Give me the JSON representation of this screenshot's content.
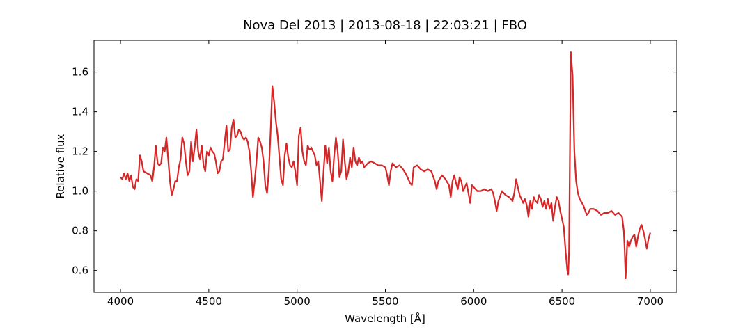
{
  "chart_data": {
    "type": "line",
    "title": "Nova Del 2013 | 2013-08-18 | 22:03:21 | FBO",
    "x_label": "Wavelength [Å]",
    "y_label": "Relative flux",
    "color": "#d62728",
    "xlim": [
      3850,
      7150
    ],
    "ylim": [
      0.49,
      1.76
    ],
    "xticks": [
      4000,
      4500,
      5000,
      5500,
      6000,
      6500,
      7000
    ],
    "yticks": [
      0.6,
      0.8,
      {
        "value": 1,
        "label": "1.0"
      },
      1.2,
      1.4,
      1.6
    ],
    "x": [
      4000,
      4010,
      4020,
      4030,
      4040,
      4050,
      4060,
      4070,
      4080,
      4090,
      4100,
      4110,
      4120,
      4130,
      4150,
      4170,
      4180,
      4190,
      4200,
      4210,
      4220,
      4230,
      4240,
      4250,
      4260,
      4270,
      4280,
      4290,
      4300,
      4310,
      4320,
      4330,
      4340,
      4350,
      4360,
      4370,
      4380,
      4390,
      4400,
      4410,
      4420,
      4430,
      4440,
      4450,
      4460,
      4470,
      4480,
      4490,
      4500,
      4510,
      4520,
      4530,
      4540,
      4550,
      4560,
      4570,
      4580,
      4590,
      4600,
      4610,
      4620,
      4630,
      4640,
      4650,
      4660,
      4670,
      4680,
      4690,
      4700,
      4710,
      4720,
      4730,
      4740,
      4750,
      4760,
      4770,
      4780,
      4790,
      4800,
      4810,
      4820,
      4830,
      4840,
      4850,
      4860,
      4870,
      4880,
      4890,
      4900,
      4910,
      4920,
      4930,
      4940,
      4950,
      4960,
      4970,
      4980,
      4990,
      5000,
      5010,
      5020,
      5030,
      5040,
      5050,
      5060,
      5070,
      5080,
      5090,
      5100,
      5110,
      5120,
      5130,
      5140,
      5150,
      5160,
      5170,
      5180,
      5190,
      5200,
      5210,
      5220,
      5230,
      5240,
      5250,
      5260,
      5270,
      5280,
      5290,
      5300,
      5310,
      5320,
      5330,
      5340,
      5350,
      5360,
      5370,
      5380,
      5400,
      5420,
      5440,
      5460,
      5480,
      5500,
      5510,
      5520,
      5530,
      5540,
      5560,
      5580,
      5600,
      5620,
      5640,
      5650,
      5660,
      5680,
      5700,
      5720,
      5740,
      5760,
      5780,
      5790,
      5800,
      5820,
      5840,
      5860,
      5870,
      5880,
      5890,
      5900,
      5910,
      5920,
      5930,
      5940,
      5960,
      5970,
      5980,
      5990,
      6000,
      6020,
      6040,
      6060,
      6080,
      6100,
      6110,
      6120,
      6130,
      6140,
      6160,
      6180,
      6200,
      6220,
      6230,
      6240,
      6250,
      6260,
      6280,
      6290,
      6300,
      6310,
      6320,
      6330,
      6340,
      6350,
      6360,
      6370,
      6380,
      6390,
      6400,
      6410,
      6420,
      6430,
      6440,
      6450,
      6460,
      6470,
      6480,
      6490,
      6500,
      6510,
      6520,
      6530,
      6535,
      6540,
      6550,
      6560,
      6570,
      6580,
      6590,
      6600,
      6620,
      6640,
      6650,
      6660,
      6680,
      6700,
      6720,
      6740,
      6760,
      6780,
      6800,
      6820,
      6840,
      6850,
      6855,
      6860,
      6870,
      6880,
      6890,
      6900,
      6910,
      6920,
      6930,
      6940,
      6950,
      6960,
      6970,
      6980,
      6990,
      7000
    ],
    "values": [
      1.07,
      1.06,
      1.09,
      1.06,
      1.09,
      1.05,
      1.08,
      1.02,
      1.01,
      1.06,
      1.05,
      1.18,
      1.15,
      1.1,
      1.09,
      1.08,
      1.05,
      1.12,
      1.23,
      1.14,
      1.13,
      1.14,
      1.22,
      1.2,
      1.27,
      1.16,
      1.05,
      0.98,
      1.01,
      1.05,
      1.05,
      1.12,
      1.16,
      1.27,
      1.24,
      1.15,
      1.08,
      1.1,
      1.25,
      1.15,
      1.22,
      1.31,
      1.2,
      1.16,
      1.23,
      1.13,
      1.1,
      1.2,
      1.18,
      1.22,
      1.2,
      1.19,
      1.15,
      1.09,
      1.1,
      1.15,
      1.16,
      1.25,
      1.33,
      1.2,
      1.21,
      1.32,
      1.36,
      1.27,
      1.28,
      1.31,
      1.3,
      1.27,
      1.26,
      1.27,
      1.25,
      1.2,
      1.1,
      0.97,
      1.05,
      1.15,
      1.27,
      1.25,
      1.22,
      1.15,
      1.03,
      0.99,
      1.1,
      1.3,
      1.53,
      1.45,
      1.35,
      1.28,
      1.17,
      1.06,
      1.03,
      1.18,
      1.24,
      1.17,
      1.13,
      1.12,
      1.15,
      1.1,
      1.03,
      1.28,
      1.32,
      1.2,
      1.15,
      1.13,
      1.23,
      1.21,
      1.22,
      1.2,
      1.18,
      1.13,
      1.15,
      1.05,
      0.95,
      1.1,
      1.23,
      1.14,
      1.22,
      1.1,
      1.05,
      1.18,
      1.27,
      1.2,
      1.07,
      1.1,
      1.26,
      1.15,
      1.06,
      1.1,
      1.17,
      1.12,
      1.22,
      1.15,
      1.13,
      1.17,
      1.14,
      1.15,
      1.12,
      1.14,
      1.15,
      1.14,
      1.13,
      1.13,
      1.12,
      1.08,
      1.03,
      1.1,
      1.14,
      1.12,
      1.13,
      1.11,
      1.08,
      1.04,
      1.03,
      1.12,
      1.13,
      1.11,
      1.1,
      1.11,
      1.1,
      1.05,
      1.01,
      1.05,
      1.08,
      1.06,
      1.03,
      0.97,
      1.05,
      1.08,
      1.04,
      1.01,
      1.07,
      1.05,
      1.0,
      1.04,
      0.99,
      0.94,
      1.03,
      1.02,
      1.0,
      1.0,
      1.01,
      1.0,
      1.01,
      0.99,
      0.95,
      0.9,
      0.95,
      1.0,
      0.98,
      0.97,
      0.95,
      0.99,
      1.06,
      1.02,
      0.98,
      0.94,
      0.96,
      0.93,
      0.87,
      0.95,
      0.91,
      0.97,
      0.95,
      0.94,
      0.98,
      0.96,
      0.92,
      0.95,
      0.91,
      0.96,
      0.91,
      0.94,
      0.85,
      0.92,
      0.97,
      0.95,
      0.9,
      0.86,
      0.82,
      0.7,
      0.6,
      0.58,
      0.7,
      1.7,
      1.58,
      1.2,
      1.05,
      0.99,
      0.96,
      0.93,
      0.88,
      0.89,
      0.91,
      0.91,
      0.9,
      0.88,
      0.89,
      0.89,
      0.9,
      0.88,
      0.89,
      0.87,
      0.8,
      0.7,
      0.56,
      0.75,
      0.72,
      0.75,
      0.77,
      0.78,
      0.72,
      0.77,
      0.81,
      0.83,
      0.8,
      0.76,
      0.71,
      0.76,
      0.79
    ]
  }
}
